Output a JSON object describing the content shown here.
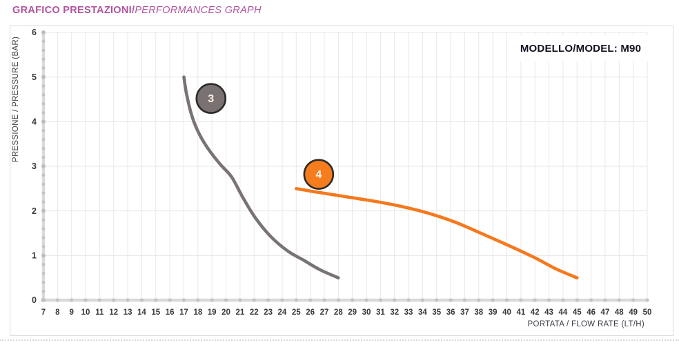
{
  "page": {
    "title_bold": "GRAFICO PRESTAZIONI/",
    "title_italic": "PERFORMANCES GRAPH",
    "model_label": "MODELLO/MODEL: M90"
  },
  "chart_data": {
    "type": "line",
    "title": "GRAFICO PRESTAZIONI / PERFORMANCES GRAPH",
    "xlabel": "PORTATA / FLOW RATE (LT/H)",
    "ylabel": "PRESSIONE / PRESSURE (BAR)",
    "xlim": [
      7,
      50
    ],
    "ylim": [
      0,
      6
    ],
    "x_ticks": [
      7,
      8,
      9,
      10,
      11,
      12,
      13,
      14,
      15,
      16,
      17,
      18,
      19,
      20,
      21,
      22,
      23,
      24,
      25,
      26,
      27,
      28,
      29,
      30,
      31,
      32,
      33,
      34,
      35,
      36,
      37,
      38,
      39,
      40,
      41,
      42,
      43,
      44,
      45,
      46,
      47,
      48,
      49,
      50
    ],
    "y_ticks": [
      0,
      1,
      2,
      3,
      4,
      5,
      6
    ],
    "grid": true,
    "legend_position": "none (curves identified by numbered badges)",
    "series": [
      {
        "name": "3",
        "color": "#7a7373",
        "badge": {
          "label": "3",
          "x": 18.93,
          "y": 4.52,
          "fill": "#7a7272"
        },
        "points": [
          [
            17,
            5.0
          ],
          [
            17.2,
            4.6
          ],
          [
            17.6,
            4.1
          ],
          [
            18.1,
            3.72
          ],
          [
            18.8,
            3.36
          ],
          [
            19.6,
            3.04
          ],
          [
            20.4,
            2.76
          ],
          [
            21.2,
            2.3
          ],
          [
            22.1,
            1.84
          ],
          [
            23.2,
            1.42
          ],
          [
            24.4,
            1.1
          ],
          [
            25.5,
            0.9
          ],
          [
            26.7,
            0.68
          ],
          [
            28,
            0.5
          ]
        ]
      },
      {
        "name": "4",
        "color": "#f5791e",
        "badge": {
          "label": "4",
          "x": 26.6,
          "y": 2.82,
          "fill": "#f57d1e"
        },
        "points": [
          [
            25,
            2.5
          ],
          [
            26.5,
            2.42
          ],
          [
            28.5,
            2.32
          ],
          [
            30.5,
            2.22
          ],
          [
            32.5,
            2.1
          ],
          [
            34.3,
            1.96
          ],
          [
            36.3,
            1.75
          ],
          [
            38.3,
            1.48
          ],
          [
            40.3,
            1.2
          ],
          [
            42,
            0.95
          ],
          [
            43.5,
            0.7
          ],
          [
            45,
            0.5
          ]
        ]
      }
    ]
  },
  "colors": {
    "accent_title": "#b1549e",
    "box_border": "#d9d9d9",
    "grid": "#e7e7e7",
    "axis_bar": "#dadada",
    "tick_dot": "#c3c3c3",
    "tick_dot_major": "#bdbdbd",
    "tick_label": "#393939",
    "axis_title": "#3e3e46",
    "model_text": "#12121e",
    "badge_border": "#2e2a28",
    "badge_text": "#faf4ea",
    "divider": "#d6d6d6"
  }
}
